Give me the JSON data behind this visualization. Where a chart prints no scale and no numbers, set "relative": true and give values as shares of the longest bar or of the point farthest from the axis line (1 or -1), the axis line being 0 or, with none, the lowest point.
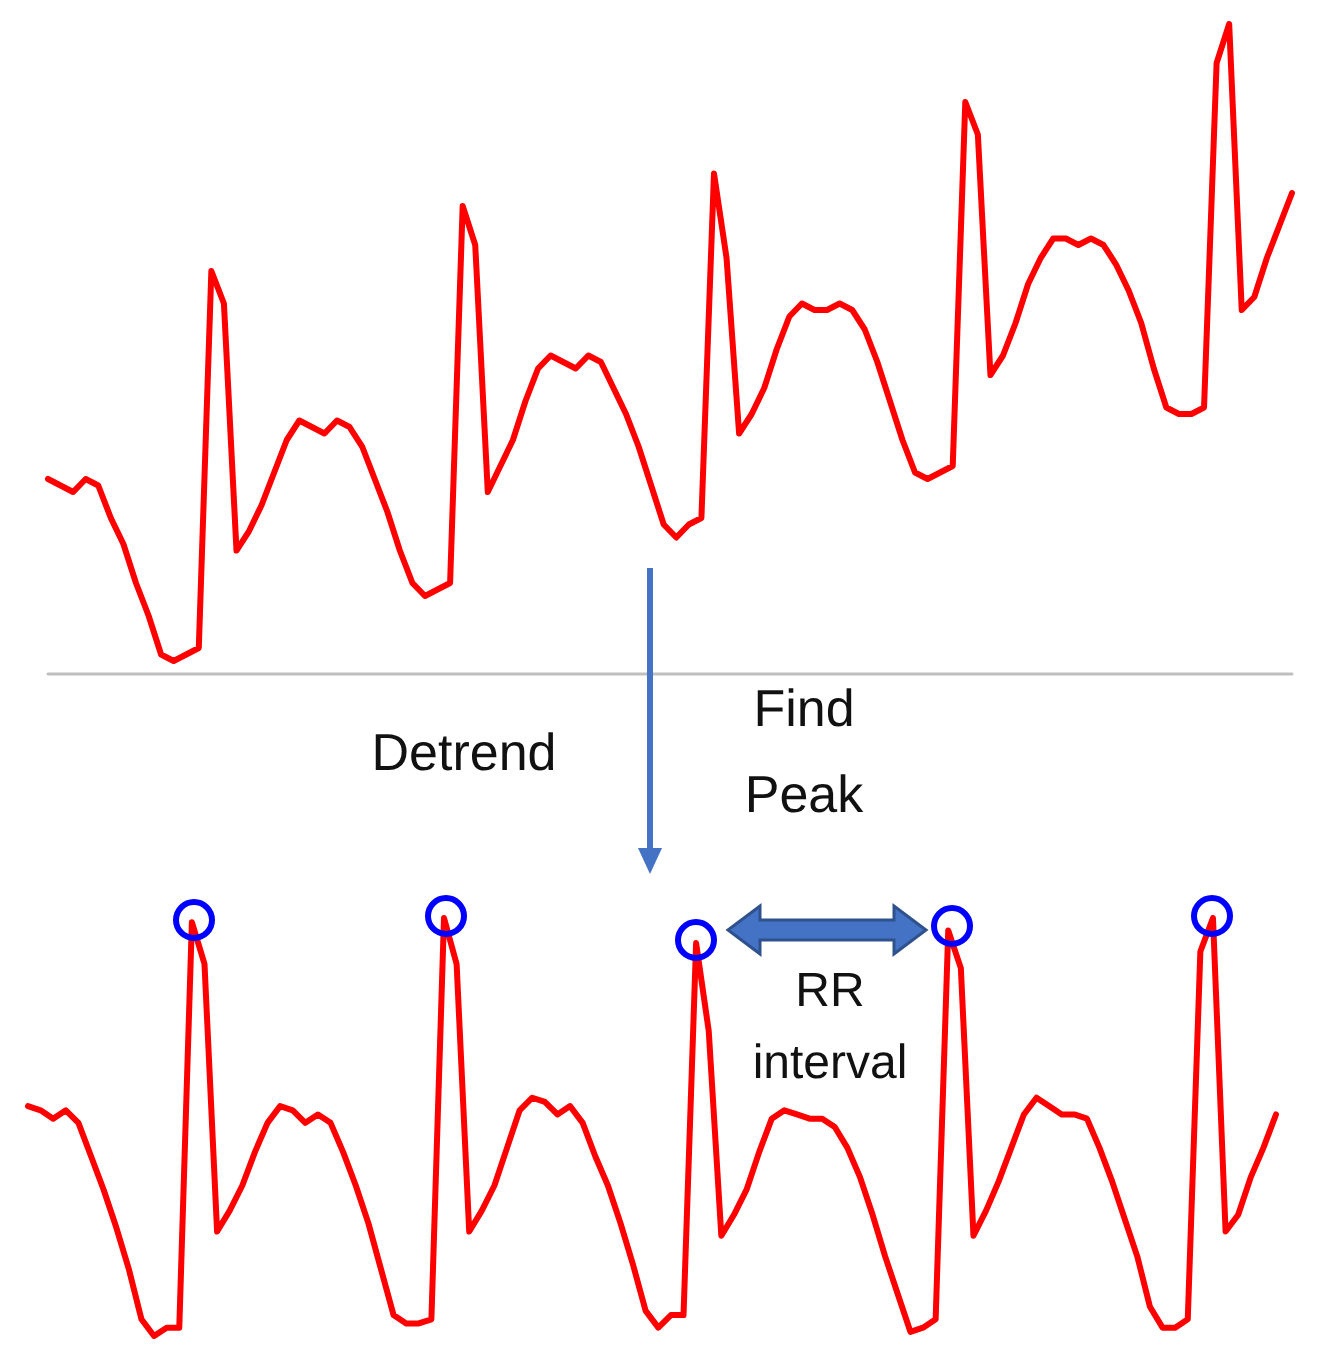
{
  "chart_data": [
    {
      "type": "line",
      "relative": true,
      "line_style": "solid",
      "categories": [
        null,
        null,
        null,
        null,
        null,
        null,
        null,
        null,
        null,
        null,
        null,
        null,
        null,
        null,
        null,
        null,
        null,
        null,
        null,
        null,
        null,
        null,
        null,
        null,
        null,
        null,
        null,
        null,
        null,
        null,
        null,
        null,
        null,
        null,
        null,
        null,
        null,
        null,
        null,
        null,
        null,
        null,
        null,
        null,
        null,
        null,
        null,
        null,
        null,
        null,
        null,
        null,
        null,
        null,
        null,
        null,
        null,
        null,
        null,
        null,
        null,
        null,
        null,
        null,
        null,
        null,
        null,
        null,
        null,
        null,
        null,
        null,
        null,
        null,
        null,
        null,
        null,
        null,
        null,
        null,
        null,
        null,
        null,
        null,
        null,
        null,
        null,
        null,
        null,
        null,
        null,
        null,
        null,
        null,
        null,
        null,
        null,
        null,
        null,
        null
      ],
      "series": [
        {
          "color": "#ff0000",
          "values": [
            0.3,
            0.29,
            0.28,
            0.3,
            0.29,
            0.24,
            0.2,
            0.14,
            0.09,
            0.03,
            0.02,
            0.03,
            0.04,
            0.62,
            0.57,
            0.19,
            0.22,
            0.26,
            0.31,
            0.36,
            0.39,
            0.38,
            0.37,
            0.39,
            0.38,
            0.35,
            0.3,
            0.25,
            0.19,
            0.14,
            0.12,
            0.13,
            0.14,
            0.72,
            0.66,
            0.28,
            0.32,
            0.36,
            0.42,
            0.47,
            0.49,
            0.48,
            0.47,
            0.49,
            0.48,
            0.44,
            0.4,
            0.35,
            0.29,
            0.23,
            0.21,
            0.23,
            0.24,
            0.77,
            0.64,
            0.37,
            0.4,
            0.44,
            0.5,
            0.55,
            0.57,
            0.56,
            0.56,
            0.57,
            0.56,
            0.53,
            0.48,
            0.42,
            0.36,
            0.31,
            0.3,
            0.31,
            0.32,
            0.88,
            0.83,
            0.46,
            0.49,
            0.54,
            0.6,
            0.64,
            0.67,
            0.67,
            0.66,
            0.67,
            0.66,
            0.63,
            0.59,
            0.54,
            0.47,
            0.41,
            0.4,
            0.4,
            0.41,
            0.94,
            1,
            0.56,
            0.58,
            0.64,
            0.69,
            0.74
          ]
        }
      ],
      "annotations": [
        "Detrend",
        "Find Peak"
      ]
    },
    {
      "type": "line",
      "relative": true,
      "line_style": "solid",
      "categories": [
        null,
        null,
        null,
        null,
        null,
        null,
        null,
        null,
        null,
        null,
        null,
        null,
        null,
        null,
        null,
        null,
        null,
        null,
        null,
        null,
        null,
        null,
        null,
        null,
        null,
        null,
        null,
        null,
        null,
        null,
        null,
        null,
        null,
        null,
        null,
        null,
        null,
        null,
        null,
        null,
        null,
        null,
        null,
        null,
        null,
        null,
        null,
        null,
        null,
        null,
        null,
        null,
        null,
        null,
        null,
        null,
        null,
        null,
        null,
        null,
        null,
        null,
        null,
        null,
        null,
        null,
        null,
        null,
        null,
        null,
        null,
        null,
        null,
        null,
        null,
        null,
        null,
        null,
        null,
        null,
        null,
        null,
        null,
        null,
        null,
        null,
        null,
        null,
        null,
        null,
        null,
        null,
        null,
        null,
        null,
        null,
        null,
        null,
        null,
        null
      ],
      "series": [
        {
          "color": "#ff0000",
          "values": [
            0.55,
            0.54,
            0.52,
            0.54,
            0.51,
            0.43,
            0.35,
            0.26,
            0.16,
            0.04,
            0,
            0.02,
            0.02,
            0.99,
            0.89,
            0.25,
            0.3,
            0.36,
            0.44,
            0.51,
            0.55,
            0.54,
            0.51,
            0.53,
            0.51,
            0.44,
            0.36,
            0.27,
            0.16,
            0.05,
            0.03,
            0.03,
            0.04,
            1,
            0.89,
            0.25,
            0.3,
            0.36,
            0.45,
            0.54,
            0.57,
            0.56,
            0.53,
            0.55,
            0.51,
            0.43,
            0.36,
            0.27,
            0.17,
            0.06,
            0.02,
            0.05,
            0.05,
            0.94,
            0.73,
            0.24,
            0.29,
            0.35,
            0.44,
            0.52,
            0.54,
            0.53,
            0.52,
            0.52,
            0.5,
            0.45,
            0.38,
            0.29,
            0.19,
            0.1,
            0.01,
            0.02,
            0.04,
            0.97,
            0.88,
            0.24,
            0.3,
            0.37,
            0.45,
            0.53,
            0.57,
            0.55,
            0.53,
            0.53,
            0.52,
            0.45,
            0.37,
            0.28,
            0.19,
            0.07,
            0.02,
            0.02,
            0.04,
            0.92,
            1,
            0.25,
            0.29,
            0.38,
            0.45,
            0.53
          ]
        }
      ],
      "annotations": [
        "RR interval"
      ]
    }
  ]
}
